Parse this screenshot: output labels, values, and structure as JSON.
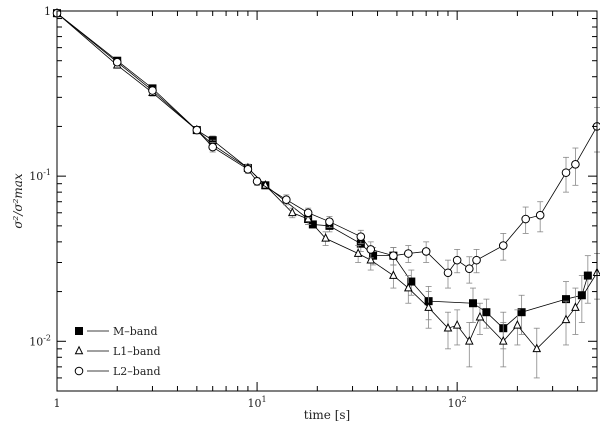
{
  "chart_data": {
    "type": "line",
    "xscale": "log",
    "yscale": "log",
    "xlim": [
      1,
      500
    ],
    "ylim": [
      0.005,
      1
    ],
    "xlabel": "time [s]",
    "ylabel": "σ²/σ²max",
    "x_ticks": [
      {
        "value": 1,
        "label": "1"
      },
      {
        "value": 10,
        "label": "10",
        "exp": "1"
      },
      {
        "value": 100,
        "label": "10",
        "exp": "2"
      }
    ],
    "y_ticks": [
      {
        "value": 1,
        "label": "1"
      },
      {
        "value": 0.1,
        "label": "10",
        "exp": "-1"
      },
      {
        "value": 0.01,
        "label": "10",
        "exp": "-2"
      }
    ],
    "grid": false,
    "legend_position": "bottom-left",
    "series": [
      {
        "name": "M–band",
        "marker": "filled-square",
        "color": "#000000",
        "points": [
          {
            "x": 1,
            "y": 0.97
          },
          {
            "x": 2,
            "y": 0.5,
            "err": 0.02
          },
          {
            "x": 3,
            "y": 0.34,
            "err": 0.015
          },
          {
            "x": 5,
            "y": 0.19
          },
          {
            "x": 6,
            "y": 0.165,
            "err": 0.01
          },
          {
            "x": 9,
            "y": 0.112,
            "err": 0.006
          },
          {
            "x": 11,
            "y": 0.088
          },
          {
            "x": 18,
            "y": 0.055,
            "err": 0.004
          },
          {
            "x": 19,
            "y": 0.051
          },
          {
            "x": 23,
            "y": 0.05,
            "err": 0.004
          },
          {
            "x": 33,
            "y": 0.039,
            "err": 0.004
          },
          {
            "x": 38,
            "y": 0.033,
            "err": 0.004
          },
          {
            "x": 48,
            "y": 0.033,
            "err": 0.004
          },
          {
            "x": 59,
            "y": 0.023,
            "err": 0.004
          },
          {
            "x": 72,
            "y": 0.0175,
            "err": 0.004
          },
          {
            "x": 120,
            "y": 0.017,
            "err": 0.004
          },
          {
            "x": 140,
            "y": 0.015,
            "err": 0.003
          },
          {
            "x": 170,
            "y": 0.012,
            "err": 0.003
          },
          {
            "x": 210,
            "y": 0.015,
            "err": 0.004
          },
          {
            "x": 350,
            "y": 0.018,
            "err": 0.005
          },
          {
            "x": 420,
            "y": 0.019,
            "err": 0.006
          },
          {
            "x": 450,
            "y": 0.025,
            "err": 0.008
          }
        ]
      },
      {
        "name": "L1–band",
        "marker": "open-triangle",
        "color": "#000000",
        "points": [
          {
            "x": 1,
            "y": 0.97
          },
          {
            "x": 2,
            "y": 0.47,
            "err": 0.02
          },
          {
            "x": 3,
            "y": 0.32,
            "err": 0.015
          },
          {
            "x": 5,
            "y": 0.19
          },
          {
            "x": 6,
            "y": 0.155,
            "err": 0.01
          },
          {
            "x": 9,
            "y": 0.112,
            "err": 0.006
          },
          {
            "x": 11,
            "y": 0.088
          },
          {
            "x": 15,
            "y": 0.06,
            "err": 0.004
          },
          {
            "x": 18,
            "y": 0.055,
            "err": 0.004
          },
          {
            "x": 22,
            "y": 0.042,
            "err": 0.004
          },
          {
            "x": 32,
            "y": 0.034,
            "err": 0.004
          },
          {
            "x": 37,
            "y": 0.031,
            "err": 0.004
          },
          {
            "x": 48,
            "y": 0.025,
            "err": 0.004
          },
          {
            "x": 57,
            "y": 0.021,
            "err": 0.004
          },
          {
            "x": 72,
            "y": 0.016,
            "err": 0.004
          },
          {
            "x": 90,
            "y": 0.012,
            "err": 0.003
          },
          {
            "x": 100,
            "y": 0.0125,
            "err": 0.003
          },
          {
            "x": 115,
            "y": 0.01,
            "err": 0.003
          },
          {
            "x": 130,
            "y": 0.014,
            "err": 0.003
          },
          {
            "x": 170,
            "y": 0.01,
            "err": 0.003
          },
          {
            "x": 200,
            "y": 0.0125,
            "err": 0.003
          },
          {
            "x": 250,
            "y": 0.009,
            "err": 0.003
          },
          {
            "x": 350,
            "y": 0.0135,
            "err": 0.004
          },
          {
            "x": 390,
            "y": 0.016,
            "err": 0.005
          },
          {
            "x": 500,
            "y": 0.026,
            "err": 0.008
          }
        ]
      },
      {
        "name": "L2–band",
        "marker": "open-circle",
        "color": "#000000",
        "points": [
          {
            "x": 1,
            "y": 0.97
          },
          {
            "x": 2,
            "y": 0.49,
            "err": 0.02
          },
          {
            "x": 3,
            "y": 0.33,
            "err": 0.015
          },
          {
            "x": 5,
            "y": 0.19
          },
          {
            "x": 6,
            "y": 0.15,
            "err": 0.01
          },
          {
            "x": 9,
            "y": 0.11,
            "err": 0.006
          },
          {
            "x": 10,
            "y": 0.093,
            "err": 0.005
          },
          {
            "x": 14,
            "y": 0.072,
            "err": 0.005
          },
          {
            "x": 18,
            "y": 0.06,
            "err": 0.004
          },
          {
            "x": 23,
            "y": 0.053,
            "err": 0.004
          },
          {
            "x": 33,
            "y": 0.043,
            "err": 0.004
          },
          {
            "x": 37,
            "y": 0.036,
            "err": 0.004
          },
          {
            "x": 48,
            "y": 0.033,
            "err": 0.004
          },
          {
            "x": 57,
            "y": 0.034,
            "err": 0.004
          },
          {
            "x": 70,
            "y": 0.035,
            "err": 0.005
          },
          {
            "x": 90,
            "y": 0.026,
            "err": 0.005
          },
          {
            "x": 100,
            "y": 0.031,
            "err": 0.005
          },
          {
            "x": 115,
            "y": 0.0275,
            "err": 0.005
          },
          {
            "x": 125,
            "y": 0.031,
            "err": 0.005
          },
          {
            "x": 170,
            "y": 0.038,
            "err": 0.007
          },
          {
            "x": 220,
            "y": 0.055,
            "err": 0.01
          },
          {
            "x": 260,
            "y": 0.058,
            "err": 0.012
          },
          {
            "x": 350,
            "y": 0.105,
            "err": 0.025
          },
          {
            "x": 390,
            "y": 0.118,
            "err": 0.03
          },
          {
            "x": 500,
            "y": 0.2,
            "err": 0.06
          }
        ]
      }
    ]
  }
}
